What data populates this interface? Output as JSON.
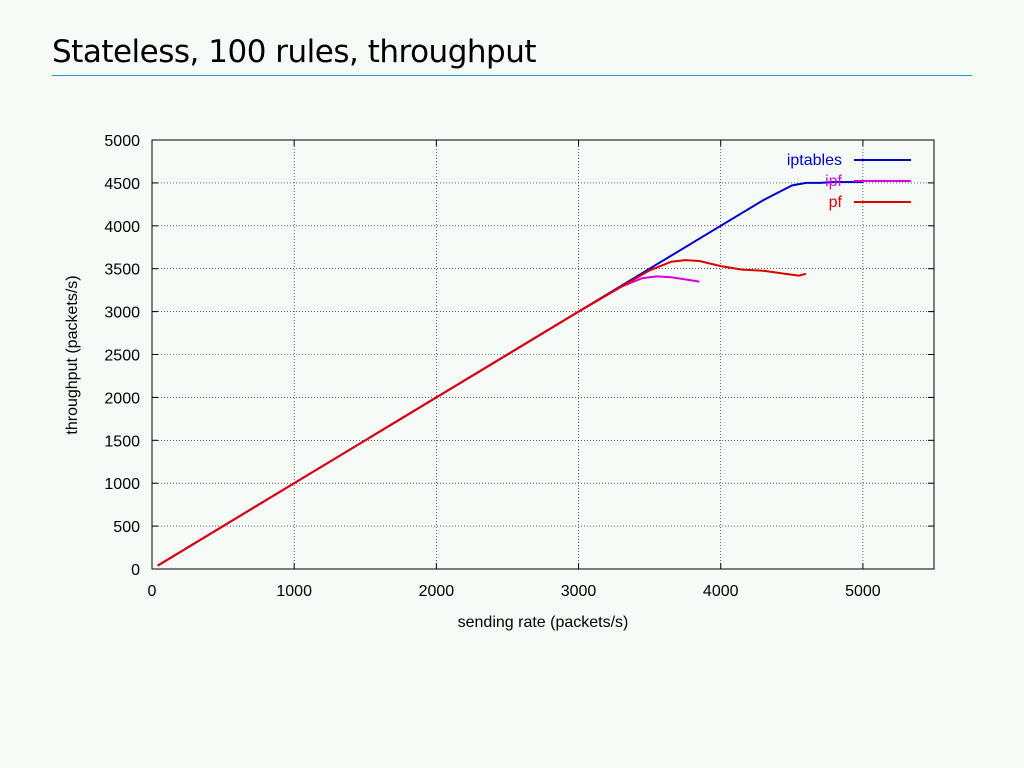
{
  "slide": {
    "title": "Stateless, 100 rules, throughput"
  },
  "chart_data": {
    "type": "line",
    "title": "",
    "xlabel": "sending rate (packets/s)",
    "ylabel": "throughput (packets/s)",
    "xlim": [
      0,
      5500
    ],
    "ylim": [
      0,
      5000
    ],
    "xticks": [
      0,
      1000,
      2000,
      3000,
      4000,
      5000
    ],
    "yticks": [
      0,
      500,
      1000,
      1500,
      2000,
      2500,
      3000,
      3500,
      4000,
      4500,
      5000
    ],
    "grid": true,
    "legend_position": "top-right",
    "series": [
      {
        "name": "iptables",
        "color": "#0000cc",
        "x": [
          40,
          500,
          1000,
          1500,
          2000,
          2500,
          3000,
          3500,
          4000,
          4300,
          4500,
          4600,
          4700,
          4800,
          5000
        ],
        "y": [
          40,
          500,
          1000,
          1500,
          2000,
          2500,
          3000,
          3500,
          4000,
          4300,
          4470,
          4500,
          4500,
          4510,
          4510
        ]
      },
      {
        "name": "ipf",
        "color": "#dd00dd",
        "x": [
          40,
          500,
          1000,
          1500,
          2000,
          2500,
          3000,
          3300,
          3450,
          3550,
          3650,
          3750,
          3850
        ],
        "y": [
          40,
          500,
          1000,
          1500,
          2000,
          2500,
          3000,
          3290,
          3390,
          3410,
          3400,
          3375,
          3350
        ]
      },
      {
        "name": "pf",
        "color": "#dd0000",
        "x": [
          40,
          500,
          1000,
          1500,
          2000,
          2500,
          3000,
          3300,
          3500,
          3650,
          3750,
          3850,
          4000,
          4150,
          4300,
          4450,
          4550,
          4600
        ],
        "y": [
          40,
          500,
          1000,
          1500,
          2000,
          2500,
          3000,
          3290,
          3480,
          3580,
          3600,
          3590,
          3530,
          3490,
          3475,
          3440,
          3420,
          3440
        ]
      }
    ]
  }
}
